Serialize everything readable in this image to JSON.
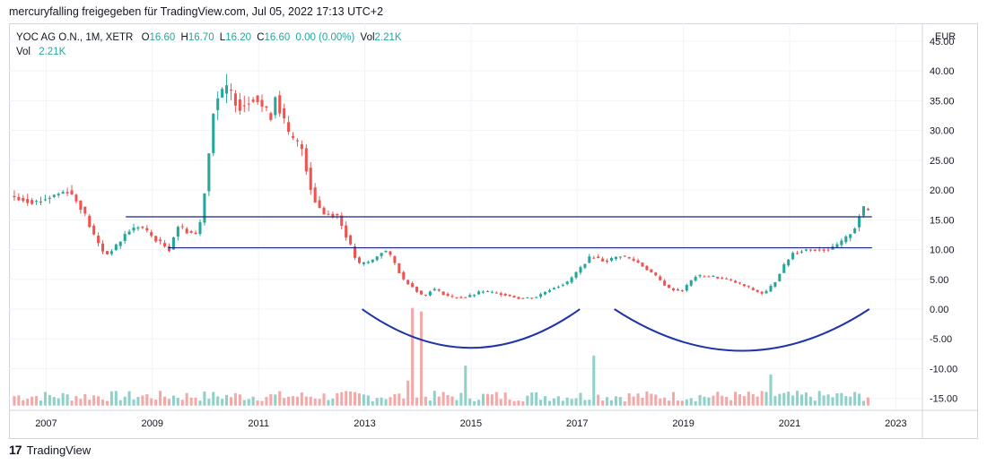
{
  "header": {
    "publish_line": "mercuryfalling freigegeben für TradingView.com, Jul 05, 2022 17:13 UTC+2"
  },
  "legend": {
    "symbol": "YOC AG O.N., 1M, XETR",
    "open_label": "O",
    "open": "16.60",
    "high_label": "H",
    "high": "16.70",
    "low_label": "L",
    "low": "16.20",
    "close_label": "C",
    "close": "16.60",
    "change": "0.00 (0.00%)",
    "vol_label": "Vol",
    "vol": "2.21K",
    "vol_row_label": "Vol",
    "vol_row_value": "2.21K"
  },
  "footer": {
    "logo": "17",
    "brand": "TradingView"
  },
  "colors": {
    "up": "#26a69a",
    "down": "#ef5350",
    "vol_up": "#8fd1c8",
    "vol_down": "#f3a9a7",
    "line": "#1a237e",
    "arc": "#1f35a8",
    "grid": "#f0f3fa"
  },
  "chart_data": {
    "type": "candlestick",
    "title": "YOC AG O.N., 1M, XETR",
    "currency_label": "EUR",
    "y_ticks": [
      "45.00",
      "40.00",
      "35.00",
      "30.00",
      "25.00",
      "20.00",
      "15.00",
      "10.00",
      "5.00",
      "0.00",
      "-5.00",
      "-10.00",
      "-15.00"
    ],
    "x_ticks": [
      "2007",
      "2009",
      "2011",
      "2013",
      "2015",
      "2017",
      "2019",
      "2021",
      "2023"
    ],
    "ylim": [
      -17,
      48
    ],
    "x_range": [
      2006.3,
      2023.5
    ],
    "anchors": [
      [
        2006.4,
        19
      ],
      [
        2006.9,
        18
      ],
      [
        2007.5,
        20
      ],
      [
        2007.75,
        17
      ],
      [
        2008.0,
        12
      ],
      [
        2008.2,
        9
      ],
      [
        2008.45,
        11
      ],
      [
        2008.6,
        13
      ],
      [
        2008.85,
        14
      ],
      [
        2009.1,
        12
      ],
      [
        2009.4,
        10
      ],
      [
        2009.55,
        14
      ],
      [
        2009.75,
        13
      ],
      [
        2009.95,
        12.5
      ],
      [
        2010.1,
        22
      ],
      [
        2010.25,
        35
      ],
      [
        2010.5,
        37
      ],
      [
        2010.75,
        34
      ],
      [
        2011.0,
        36
      ],
      [
        2011.15,
        34
      ],
      [
        2011.3,
        32
      ],
      [
        2011.4,
        36
      ],
      [
        2011.65,
        29
      ],
      [
        2011.9,
        27
      ],
      [
        2012.1,
        19
      ],
      [
        2012.3,
        16
      ],
      [
        2012.55,
        16
      ],
      [
        2012.75,
        12
      ],
      [
        2012.95,
        7.5
      ],
      [
        2013.2,
        8
      ],
      [
        2013.45,
        10
      ],
      [
        2013.6,
        8.5
      ],
      [
        2013.8,
        5
      ],
      [
        2013.95,
        4
      ],
      [
        2014.2,
        2
      ],
      [
        2014.35,
        3.5
      ],
      [
        2014.7,
        2
      ],
      [
        2015.0,
        2
      ],
      [
        2015.3,
        3
      ],
      [
        2015.7,
        2.5
      ],
      [
        2016.0,
        1.8
      ],
      [
        2016.3,
        2
      ],
      [
        2016.6,
        3.5
      ],
      [
        2016.9,
        4.5
      ],
      [
        2017.1,
        6.5
      ],
      [
        2017.35,
        9
      ],
      [
        2017.6,
        8
      ],
      [
        2017.9,
        9
      ],
      [
        2018.2,
        8
      ],
      [
        2018.5,
        6
      ],
      [
        2018.8,
        3.5
      ],
      [
        2019.05,
        3
      ],
      [
        2019.3,
        5.5
      ],
      [
        2019.6,
        5.5
      ],
      [
        2019.9,
        5
      ],
      [
        2020.2,
        4
      ],
      [
        2020.45,
        3
      ],
      [
        2020.6,
        2.5
      ],
      [
        2020.8,
        4.5
      ],
      [
        2020.95,
        7
      ],
      [
        2021.15,
        9.5
      ],
      [
        2021.4,
        10
      ],
      [
        2021.6,
        10
      ],
      [
        2021.85,
        10
      ],
      [
        2022.1,
        11.5
      ],
      [
        2022.3,
        13.5
      ],
      [
        2022.45,
        17
      ],
      [
        2022.52,
        16.6
      ]
    ],
    "candle_step_years": 0.0833,
    "support_lines": [
      {
        "y": 15.5,
        "x_start": 2008.5,
        "x_end": 2022.55
      },
      {
        "y": 10.3,
        "x_start": 2009.3,
        "x_end": 2022.55
      }
    ],
    "arcs": [
      {
        "x_start": 2012.95,
        "x_end": 2017.05,
        "y_start": 0,
        "y_bottom": -6.5
      },
      {
        "x_start": 2017.7,
        "x_end": 2022.5,
        "y_start": 0,
        "y_bottom": -7
      }
    ],
    "volume": {
      "baseline": -16.2,
      "typical_top": -14.6,
      "spikes": [
        {
          "x": 2013.92,
          "top": 0.2
        },
        {
          "x": 2014.05,
          "top": -0.4
        },
        {
          "x": 2013.78,
          "top": -12
        },
        {
          "x": 2014.9,
          "top": -9.5
        },
        {
          "x": 2017.3,
          "top": -7.8
        },
        {
          "x": 2020.65,
          "top": -11
        }
      ]
    }
  }
}
